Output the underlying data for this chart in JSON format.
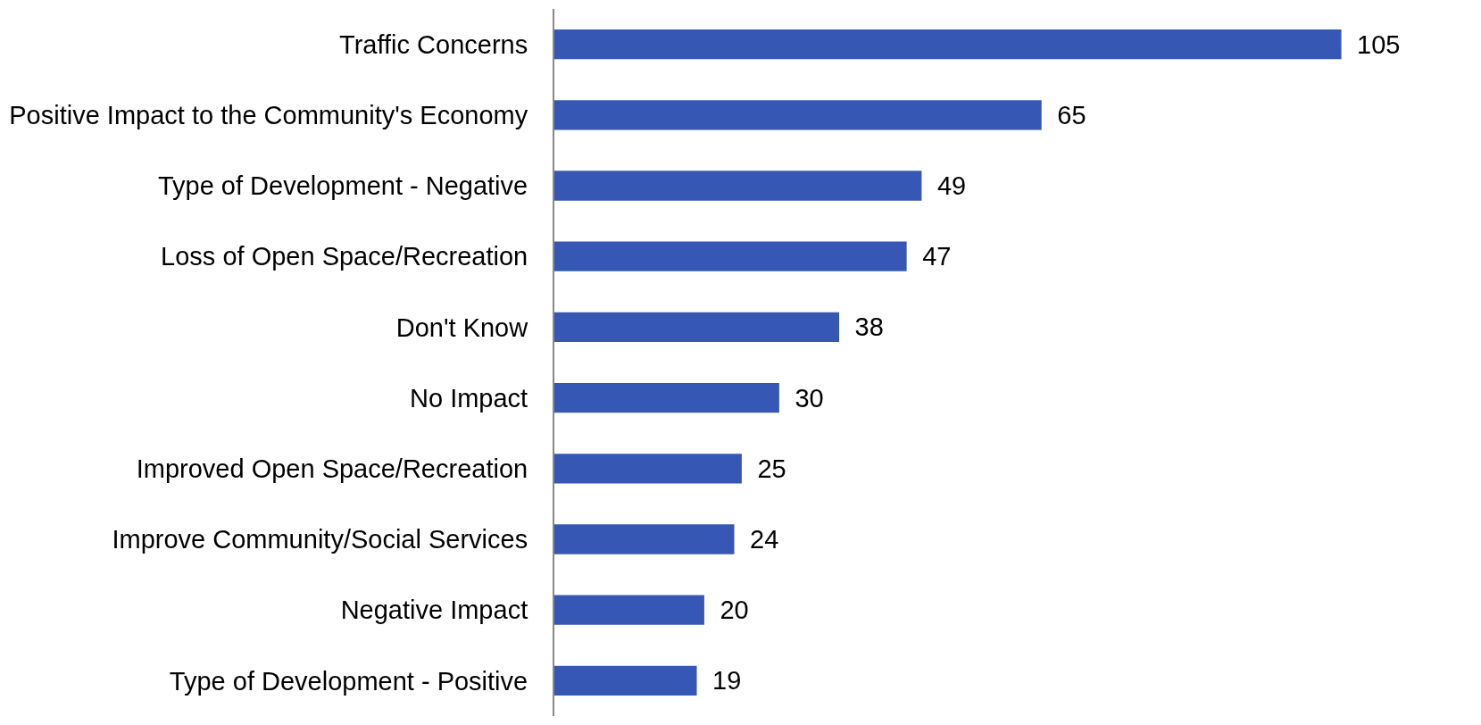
{
  "chart_data": {
    "type": "bar",
    "orientation": "horizontal",
    "categories": [
      "Traffic Concerns",
      "Positive Impact to the Community's Economy",
      "Type of Development - Negative",
      "Loss of Open Space/Recreation",
      "Don't Know",
      "No Impact",
      "Improved Open Space/Recreation",
      "Improve Community/Social Services",
      "Negative Impact",
      "Type of Development - Positive"
    ],
    "values": [
      105,
      65,
      49,
      47,
      38,
      30,
      25,
      24,
      20,
      19
    ],
    "color": "#3658b4",
    "data_labels": true
  }
}
